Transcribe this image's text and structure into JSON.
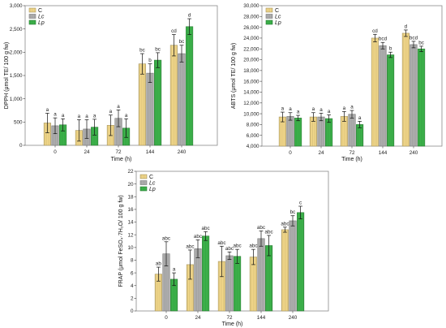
{
  "chart_data": [
    {
      "type": "bar",
      "ylabel": "DPPH (μmol TE/ 100 g fw)",
      "xlabel": "Time (h)",
      "categories": [
        "0",
        "24",
        "72",
        "144",
        "240"
      ],
      "ylim": [
        0,
        3000
      ],
      "yticks": [
        "0",
        "500",
        "1,000",
        "1,500",
        "2,000",
        "2,500",
        "3,000"
      ],
      "grid": false,
      "legend": "top-left",
      "series": [
        {
          "name": "C",
          "color": "#f4d98a",
          "values": [
            480,
            320,
            430,
            1750,
            2150
          ],
          "errors": [
            210,
            230,
            220,
            220,
            230
          ],
          "letters": [
            "a",
            "a",
            "a",
            "bc",
            "cd"
          ]
        },
        {
          "name": "Lc",
          "color": "#b1b1b1",
          "values": [
            420,
            350,
            580,
            1550,
            1970
          ],
          "errors": [
            170,
            200,
            180,
            200,
            180
          ],
          "letters": [
            "a",
            "a",
            "a",
            "b",
            "bc"
          ]
        },
        {
          "name": "Lp",
          "color": "#3db54b",
          "values": [
            440,
            390,
            370,
            1830,
            2550
          ],
          "errors": [
            130,
            170,
            200,
            160,
            170
          ],
          "letters": [
            "a",
            "a",
            "a",
            "bc",
            "d"
          ]
        }
      ]
    },
    {
      "type": "bar",
      "ylabel": "ABTS (μmol TE/ 100 g fw)",
      "xlabel": "Time (h)",
      "categories": [
        "0",
        "24",
        "72",
        "144",
        "240"
      ],
      "ylim": [
        4000,
        30000
      ],
      "yticks": [
        "4,000",
        "6,000",
        "8,000",
        "10,000",
        "12,000",
        "14,000",
        "16,000",
        "18,000",
        "20,000",
        "22,000",
        "24,000",
        "26,000",
        "28,000",
        "30,000"
      ],
      "grid": false,
      "legend": "top-left",
      "series": [
        {
          "name": "C",
          "color": "#f4d98a",
          "values": [
            9400,
            9400,
            9500,
            24000,
            24900
          ],
          "errors": [
            900,
            800,
            900,
            700,
            600
          ],
          "letters": [
            "a",
            "a",
            "a",
            "cd",
            "d"
          ]
        },
        {
          "name": "Lc",
          "color": "#b1b1b1",
          "values": [
            9500,
            9400,
            9900,
            22600,
            22800
          ],
          "errors": [
            700,
            700,
            700,
            600,
            600
          ],
          "letters": [
            "a",
            "a",
            "a",
            "bcd",
            "bcd"
          ]
        },
        {
          "name": "Lp",
          "color": "#3db54b",
          "values": [
            9200,
            9100,
            8000,
            20900,
            22000
          ],
          "errors": [
            500,
            700,
            600,
            500,
            500
          ],
          "letters": [
            "a",
            "a",
            "a",
            "b",
            "bc"
          ]
        }
      ]
    },
    {
      "type": "bar",
      "ylabel": "FRAP (μmol FeSO₄·7H₂O/ 100 g fw)",
      "xlabel": "Time (h)",
      "categories": [
        "0",
        "24",
        "72",
        "144",
        "240"
      ],
      "ylim": [
        0,
        22
      ],
      "yticks": [
        "0",
        "2",
        "4",
        "6",
        "8",
        "10",
        "12",
        "14",
        "16",
        "18",
        "20",
        "22"
      ],
      "grid": false,
      "legend": "top-left",
      "series": [
        {
          "name": "C",
          "color": "#f4d98a",
          "values": [
            5.8,
            7.3,
            7.8,
            8.5,
            12.8
          ],
          "errors": [
            1.1,
            2.3,
            2.4,
            1.2,
            0.4
          ],
          "letters": [
            "ab",
            "abc",
            "abc",
            "abc",
            "abc"
          ]
        },
        {
          "name": "Lc",
          "color": "#b1b1b1",
          "values": [
            9.0,
            9.8,
            8.7,
            11.4,
            14.2
          ],
          "errors": [
            1.9,
            1.4,
            0.6,
            1.2,
            0.8
          ],
          "letters": [
            "abc",
            "abc",
            "abc",
            "abc",
            "bc"
          ]
        },
        {
          "name": "Lp",
          "color": "#3db54b",
          "values": [
            5.0,
            11.8,
            8.6,
            10.3,
            15.5
          ],
          "errors": [
            1.0,
            0.7,
            1.1,
            1.6,
            1.0
          ],
          "letters": [
            "a",
            "abc",
            "abc",
            "abc",
            "c"
          ]
        }
      ]
    }
  ]
}
